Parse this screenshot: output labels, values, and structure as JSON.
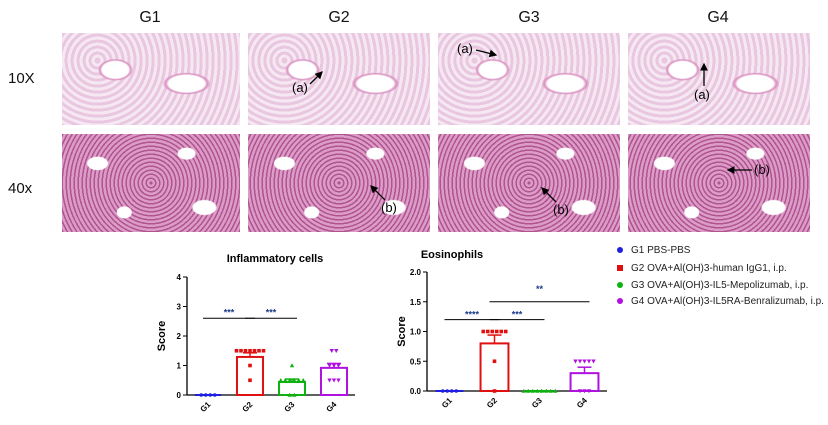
{
  "columns": [
    "G1",
    "G2",
    "G3",
    "G4"
  ],
  "rows": [
    "10X",
    "40x"
  ],
  "annotations": {
    "a": "(a)",
    "b": "(b)"
  },
  "legend": [
    {
      "label": "G1 PBS-PBS",
      "color": "#1f1fe0",
      "marker": "circle"
    },
    {
      "label": "G2 OVA+Al(OH)3-human IgG1, i.p.",
      "color": "#e01010",
      "marker": "square"
    },
    {
      "label": "G3 OVA+Al(OH)3-IL5-Mepolizumab, i.p.",
      "color": "#10b010",
      "marker": "triangle"
    },
    {
      "label": "G4 OVA+Al(OH)3-IL5RA-Benralizumab, i.p.",
      "color": "#b010e0",
      "marker": "triangle-down"
    }
  ],
  "chart_data": [
    {
      "type": "bar",
      "title": "Inflammatory cells",
      "ylabel": "Score",
      "xlabel": "",
      "categories": [
        "G1",
        "G2",
        "G3",
        "G4"
      ],
      "ylim": [
        0,
        4
      ],
      "yticks": [
        "0",
        "1",
        "2",
        "3",
        "4"
      ],
      "values": [
        0,
        1.29,
        0.44,
        0.92
      ],
      "errors": [
        0,
        0.14,
        0.1,
        0.15
      ],
      "points": [
        [
          0,
          0,
          0,
          0
        ],
        [
          1.5,
          1.5,
          1.5,
          1.5,
          1.5,
          1.5,
          1.5,
          1,
          0.5
        ],
        [
          1,
          0.5,
          0.5,
          0.5,
          0.5,
          0.5,
          0.5,
          0,
          0
        ],
        [
          1.5,
          1.5,
          1,
          1,
          1,
          0.5,
          0.5,
          0.5
        ]
      ],
      "significance": [
        {
          "from": 0,
          "to": 1,
          "y": 2.6,
          "label": "***"
        },
        {
          "from": 1,
          "to": 2,
          "y": 2.6,
          "label": "***"
        }
      ]
    },
    {
      "type": "bar",
      "title": "Eosinophils",
      "ylabel": "Score",
      "xlabel": "",
      "categories": [
        "G1",
        "G2",
        "G3",
        "G4"
      ],
      "ylim": [
        0,
        2
      ],
      "yticks": [
        "0.0",
        "0.5",
        "1.0",
        "1.5",
        "2.0"
      ],
      "values": [
        0,
        0.8,
        0,
        0.3
      ],
      "errors": [
        0,
        0.14,
        0,
        0.1
      ],
      "points": [
        [
          0,
          0,
          0,
          0
        ],
        [
          1,
          1,
          1,
          1,
          1,
          1,
          0.5,
          0
        ],
        [
          0,
          0,
          0,
          0,
          0,
          0,
          0,
          0
        ],
        [
          0.5,
          0.5,
          0.5,
          0.5,
          0.5,
          0,
          0,
          0
        ]
      ],
      "significance": [
        {
          "from": 0,
          "to": 1,
          "y": 1.2,
          "label": "****"
        },
        {
          "from": 1,
          "to": 2,
          "y": 1.2,
          "label": "***"
        },
        {
          "from": 1,
          "to": 3,
          "y": 1.5,
          "label": "**"
        }
      ]
    }
  ]
}
